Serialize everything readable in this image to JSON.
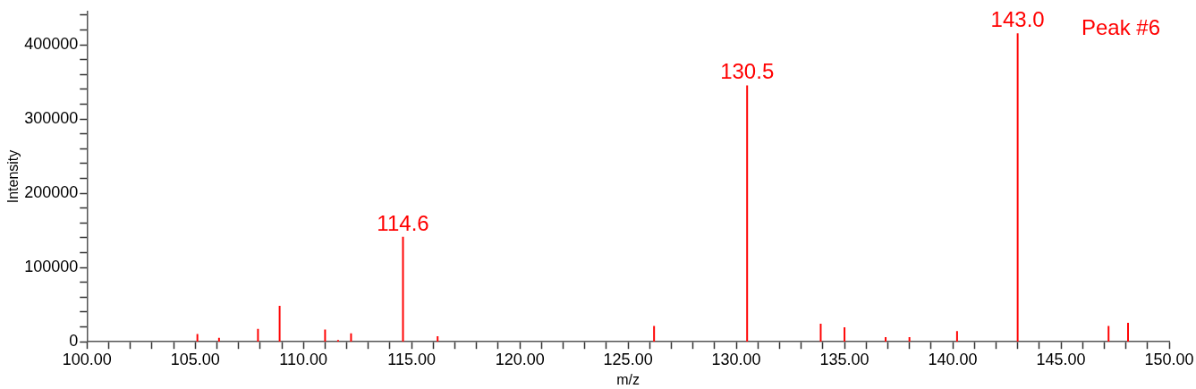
{
  "chart_data": {
    "type": "bar",
    "xlabel": "m/z",
    "ylabel": "Intensity",
    "x": [
      105.1,
      106.1,
      107.9,
      108.9,
      111.0,
      111.6,
      112.2,
      114.6,
      116.2,
      126.2,
      130.5,
      133.9,
      135.0,
      136.9,
      138.0,
      140.2,
      143.0,
      147.2,
      148.1
    ],
    "values": [
      10000,
      5000,
      17000,
      48000,
      16000,
      2000,
      11000,
      141000,
      7000,
      21000,
      345000,
      24000,
      19000,
      6000,
      6000,
      14000,
      415000,
      21000,
      25000
    ],
    "color": "#ff0000",
    "xlim": [
      100,
      150
    ],
    "xticks": [
      {
        "value": 100,
        "label": "100.00"
      },
      {
        "value": 101,
        "label": null
      },
      {
        "value": 102,
        "label": null
      },
      {
        "value": 103,
        "label": null
      },
      {
        "value": 104,
        "label": null
      },
      {
        "value": 105,
        "label": "105.00"
      },
      {
        "value": 106,
        "label": null
      },
      {
        "value": 107,
        "label": null
      },
      {
        "value": 108,
        "label": null
      },
      {
        "value": 109,
        "label": null
      },
      {
        "value": 110,
        "label": "110.00"
      },
      {
        "value": 111,
        "label": null
      },
      {
        "value": 112,
        "label": null
      },
      {
        "value": 113,
        "label": null
      },
      {
        "value": 114,
        "label": null
      },
      {
        "value": 115,
        "label": "115.00"
      },
      {
        "value": 116,
        "label": null
      },
      {
        "value": 117,
        "label": null
      },
      {
        "value": 118,
        "label": null
      },
      {
        "value": 119,
        "label": null
      },
      {
        "value": 120,
        "label": "120.00"
      },
      {
        "value": 121,
        "label": null
      },
      {
        "value": 122,
        "label": null
      },
      {
        "value": 123,
        "label": null
      },
      {
        "value": 124,
        "label": null
      },
      {
        "value": 125,
        "label": "125.00"
      },
      {
        "value": 126,
        "label": null
      },
      {
        "value": 127,
        "label": null
      },
      {
        "value": 128,
        "label": null
      },
      {
        "value": 129,
        "label": null
      },
      {
        "value": 130,
        "label": "130.00"
      },
      {
        "value": 131,
        "label": null
      },
      {
        "value": 132,
        "label": null
      },
      {
        "value": 133,
        "label": null
      },
      {
        "value": 134,
        "label": null
      },
      {
        "value": 135,
        "label": "135.00"
      },
      {
        "value": 136,
        "label": null
      },
      {
        "value": 137,
        "label": null
      },
      {
        "value": 138,
        "label": null
      },
      {
        "value": 139,
        "label": null
      },
      {
        "value": 140,
        "label": "140.00"
      },
      {
        "value": 141,
        "label": null
      },
      {
        "value": 142,
        "label": null
      },
      {
        "value": 143,
        "label": null
      },
      {
        "value": 144,
        "label": null
      },
      {
        "value": 145,
        "label": "145.00"
      },
      {
        "value": 146,
        "label": null
      },
      {
        "value": 147,
        "label": null
      },
      {
        "value": 148,
        "label": null
      },
      {
        "value": 149,
        "label": null
      },
      {
        "value": 150,
        "label": "150.00"
      }
    ],
    "ylim": [
      0,
      445000
    ],
    "yticks": [
      0,
      {
        "value": 20000,
        "label": null
      },
      {
        "value": 40000,
        "label": null
      },
      {
        "value": 60000,
        "label": null
      },
      {
        "value": 80000,
        "label": null
      },
      100000,
      {
        "value": 120000,
        "label": null
      },
      {
        "value": 140000,
        "label": null
      },
      {
        "value": 160000,
        "label": null
      },
      {
        "value": 180000,
        "label": null
      },
      200000,
      {
        "value": 220000,
        "label": null
      },
      {
        "value": 240000,
        "label": null
      },
      {
        "value": 260000,
        "label": null
      },
      {
        "value": 280000,
        "label": null
      },
      300000,
      {
        "value": 320000,
        "label": null
      },
      {
        "value": 340000,
        "label": null
      },
      {
        "value": 360000,
        "label": null
      },
      {
        "value": 380000,
        "label": null
      },
      400000,
      {
        "value": 420000,
        "label": null
      },
      {
        "value": 440000,
        "label": null
      }
    ],
    "grid": false,
    "legend": false,
    "annotations": [
      {
        "text": "114.6",
        "x": 114.6,
        "y": 141000
      },
      {
        "text": "130.5",
        "x": 130.5,
        "y": 345000
      },
      {
        "text": "143.0",
        "x": 143.0,
        "y": 415000
      },
      "Peak #6"
    ]
  }
}
